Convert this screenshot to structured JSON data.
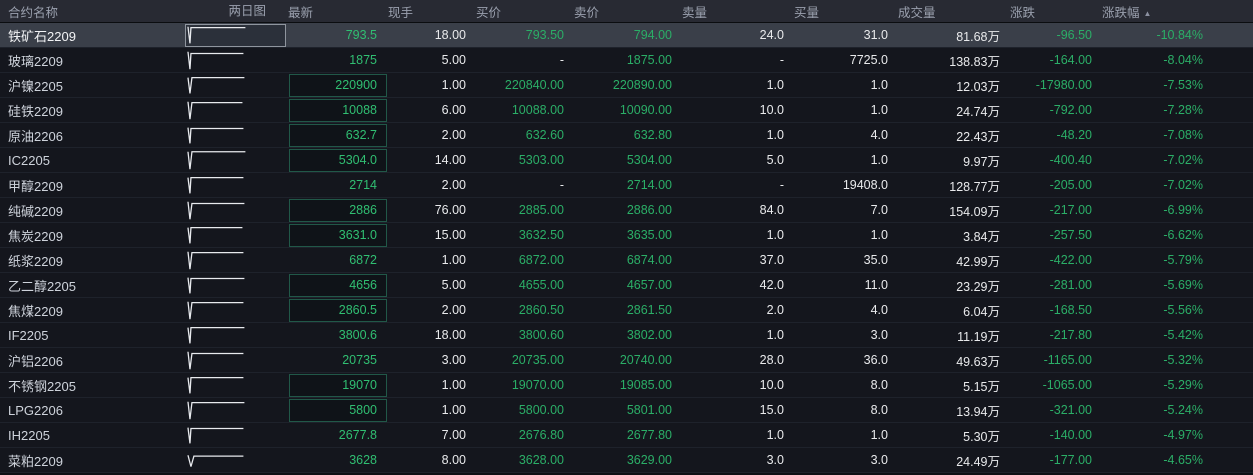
{
  "colors": {
    "green": "#2bae67",
    "latest-green": "#30bf72",
    "header-text": "#9aa0ae",
    "header-bg": "#282a33",
    "row-bg": "#14161d",
    "row-selected-bg": "#3a3f49",
    "box-border": "#215848",
    "focus-border": "#8f959e",
    "spark-stroke": "#e8eaee"
  },
  "sort_icon": "▲",
  "columns": [
    {
      "key": "name",
      "label": "合约名称",
      "align": "left"
    },
    {
      "key": "chart",
      "label": "两日图",
      "align": "chart"
    },
    {
      "key": "latest",
      "label": "最新",
      "align": "right"
    },
    {
      "key": "hand",
      "label": "现手",
      "align": "right"
    },
    {
      "key": "bid",
      "label": "买价",
      "align": "right"
    },
    {
      "key": "ask",
      "label": "卖价",
      "align": "right"
    },
    {
      "key": "askvol",
      "label": "卖量",
      "align": "right"
    },
    {
      "key": "bidvol",
      "label": "买量",
      "align": "right"
    },
    {
      "key": "vol",
      "label": "成交量",
      "align": "right"
    },
    {
      "key": "chg",
      "label": "涨跌",
      "align": "right"
    },
    {
      "key": "pct",
      "label": "涨跌幅",
      "align": "right",
      "sort": "asc"
    }
  ],
  "rows": [
    {
      "name": "铁矿石2209",
      "latest": "793.5",
      "hand": "18.00",
      "bid": "793.50",
      "ask": "794.00",
      "askvol": "24.0",
      "bidvol": "31.0",
      "vol": "81.68万",
      "chg": "-96.50",
      "pct": "-10.84%",
      "selected": true,
      "chart_focus": true,
      "latest_boxed": false,
      "spark": [
        [
          2,
          2
        ],
        [
          4,
          21
        ],
        [
          5,
          3
        ],
        [
          60,
          3
        ]
      ]
    },
    {
      "name": "玻璃2209",
      "latest": "1875",
      "hand": "5.00",
      "bid": "-",
      "ask": "1875.00",
      "askvol": "-",
      "bidvol": "7725.0",
      "vol": "138.83万",
      "chg": "-164.00",
      "pct": "-8.04%",
      "selected": false,
      "chart_focus": false,
      "latest_boxed": false,
      "spark": [
        [
          2,
          2
        ],
        [
          4,
          22
        ],
        [
          5,
          4
        ],
        [
          58,
          4
        ]
      ]
    },
    {
      "name": "沪镍2205",
      "latest": "220900",
      "hand": "1.00",
      "bid": "220840.00",
      "ask": "220890.00",
      "askvol": "1.0",
      "bidvol": "1.0",
      "vol": "12.03万",
      "chg": "-17980.00",
      "pct": "-7.53%",
      "selected": false,
      "chart_focus": false,
      "latest_boxed": true,
      "spark": [
        [
          2,
          3
        ],
        [
          4,
          21
        ],
        [
          6,
          3
        ],
        [
          59,
          3
        ]
      ]
    },
    {
      "name": "硅铁2209",
      "latest": "10088",
      "hand": "6.00",
      "bid": "10088.00",
      "ask": "10090.00",
      "askvol": "10.0",
      "bidvol": "1.0",
      "vol": "24.74万",
      "chg": "-792.00",
      "pct": "-7.28%",
      "selected": false,
      "chart_focus": false,
      "latest_boxed": true,
      "spark": [
        [
          2,
          2
        ],
        [
          4,
          22
        ],
        [
          6,
          3
        ],
        [
          57,
          3
        ]
      ]
    },
    {
      "name": "原油2206",
      "latest": "632.7",
      "hand": "2.00",
      "bid": "632.60",
      "ask": "632.80",
      "askvol": "1.0",
      "bidvol": "4.0",
      "vol": "22.43万",
      "chg": "-48.20",
      "pct": "-7.08%",
      "selected": false,
      "chart_focus": false,
      "latest_boxed": true,
      "spark": [
        [
          2,
          3
        ],
        [
          4,
          21
        ],
        [
          5,
          4
        ],
        [
          58,
          4
        ]
      ]
    },
    {
      "name": "IC2205",
      "latest": "5304.0",
      "hand": "14.00",
      "bid": "5303.00",
      "ask": "5304.00",
      "askvol": "5.0",
      "bidvol": "1.0",
      "vol": "9.97万",
      "chg": "-400.40",
      "pct": "-7.02%",
      "selected": false,
      "chart_focus": false,
      "latest_boxed": true,
      "spark": [
        [
          2,
          2
        ],
        [
          4,
          22
        ],
        [
          6,
          2
        ],
        [
          60,
          2
        ]
      ]
    },
    {
      "name": "甲醇2209",
      "latest": "2714",
      "hand": "2.00",
      "bid": "-",
      "ask": "2714.00",
      "askvol": "-",
      "bidvol": "19408.0",
      "vol": "128.77万",
      "chg": "-205.00",
      "pct": "-7.02%",
      "selected": false,
      "chart_focus": false,
      "latest_boxed": false,
      "spark": [
        [
          2,
          3
        ],
        [
          4,
          21
        ],
        [
          5,
          3
        ],
        [
          58,
          3
        ]
      ]
    },
    {
      "name": "纯碱2209",
      "latest": "2886",
      "hand": "76.00",
      "bid": "2885.00",
      "ask": "2886.00",
      "askvol": "84.0",
      "bidvol": "7.0",
      "vol": "154.09万",
      "chg": "-217.00",
      "pct": "-6.99%",
      "selected": false,
      "chart_focus": false,
      "latest_boxed": true,
      "spark": [
        [
          2,
          2
        ],
        [
          4,
          22
        ],
        [
          6,
          4
        ],
        [
          59,
          4
        ]
      ]
    },
    {
      "name": "焦炭2209",
      "latest": "3631.0",
      "hand": "15.00",
      "bid": "3632.50",
      "ask": "3635.00",
      "askvol": "1.0",
      "bidvol": "1.0",
      "vol": "3.84万",
      "chg": "-257.50",
      "pct": "-6.62%",
      "selected": false,
      "chart_focus": false,
      "latest_boxed": true,
      "spark": [
        [
          2,
          3
        ],
        [
          4,
          21
        ],
        [
          5,
          3
        ],
        [
          57,
          3
        ]
      ]
    },
    {
      "name": "纸浆2209",
      "latest": "6872",
      "hand": "1.00",
      "bid": "6872.00",
      "ask": "6874.00",
      "askvol": "37.0",
      "bidvol": "35.0",
      "vol": "42.99万",
      "chg": "-422.00",
      "pct": "-5.79%",
      "selected": false,
      "chart_focus": false,
      "latest_boxed": false,
      "spark": [
        [
          2,
          2
        ],
        [
          4,
          22
        ],
        [
          6,
          3
        ],
        [
          58,
          3
        ]
      ]
    },
    {
      "name": "乙二醇2205",
      "latest": "4656",
      "hand": "5.00",
      "bid": "4655.00",
      "ask": "4657.00",
      "askvol": "42.0",
      "bidvol": "11.0",
      "vol": "23.29万",
      "chg": "-281.00",
      "pct": "-5.69%",
      "selected": false,
      "chart_focus": false,
      "latest_boxed": true,
      "spark": [
        [
          2,
          3
        ],
        [
          4,
          21
        ],
        [
          5,
          4
        ],
        [
          59,
          4
        ]
      ]
    },
    {
      "name": "焦煤2209",
      "latest": "2860.5",
      "hand": "2.00",
      "bid": "2860.50",
      "ask": "2861.50",
      "askvol": "2.0",
      "bidvol": "4.0",
      "vol": "6.04万",
      "chg": "-168.50",
      "pct": "-5.56%",
      "selected": false,
      "chart_focus": false,
      "latest_boxed": true,
      "spark": [
        [
          2,
          2
        ],
        [
          4,
          22
        ],
        [
          6,
          3
        ],
        [
          58,
          3
        ]
      ]
    },
    {
      "name": "IF2205",
      "latest": "3800.6",
      "hand": "18.00",
      "bid": "3800.60",
      "ask": "3802.00",
      "askvol": "1.0",
      "bidvol": "3.0",
      "vol": "11.19万",
      "chg": "-217.80",
      "pct": "-5.42%",
      "selected": false,
      "chart_focus": false,
      "latest_boxed": false,
      "spark": [
        [
          2,
          3
        ],
        [
          4,
          21
        ],
        [
          5,
          3
        ],
        [
          59,
          3
        ]
      ]
    },
    {
      "name": "沪铝2206",
      "latest": "20735",
      "hand": "3.00",
      "bid": "20735.00",
      "ask": "20740.00",
      "askvol": "28.0",
      "bidvol": "36.0",
      "vol": "49.63万",
      "chg": "-1165.00",
      "pct": "-5.32%",
      "selected": false,
      "chart_focus": false,
      "latest_boxed": false,
      "spark": [
        [
          2,
          2
        ],
        [
          4,
          22
        ],
        [
          6,
          4
        ],
        [
          58,
          4
        ]
      ]
    },
    {
      "name": "不锈钢2205",
      "latest": "19070",
      "hand": "1.00",
      "bid": "19070.00",
      "ask": "19085.00",
      "askvol": "10.0",
      "bidvol": "8.0",
      "vol": "5.15万",
      "chg": "-1065.00",
      "pct": "-5.29%",
      "selected": false,
      "chart_focus": false,
      "latest_boxed": true,
      "spark": [
        [
          2,
          3
        ],
        [
          4,
          21
        ],
        [
          5,
          3
        ],
        [
          58,
          3
        ]
      ]
    },
    {
      "name": "LPG2206",
      "latest": "5800",
      "hand": "1.00",
      "bid": "5800.00",
      "ask": "5801.00",
      "askvol": "15.0",
      "bidvol": "8.0",
      "vol": "13.94万",
      "chg": "-321.00",
      "pct": "-5.24%",
      "selected": false,
      "chart_focus": false,
      "latest_boxed": true,
      "spark": [
        [
          2,
          2
        ],
        [
          4,
          22
        ],
        [
          6,
          3
        ],
        [
          59,
          3
        ]
      ]
    },
    {
      "name": "IH2205",
      "latest": "2677.8",
      "hand": "7.00",
      "bid": "2676.80",
      "ask": "2677.80",
      "askvol": "1.0",
      "bidvol": "1.0",
      "vol": "5.30万",
      "chg": "-140.00",
      "pct": "-4.97%",
      "selected": false,
      "chart_focus": false,
      "latest_boxed": false,
      "spark": [
        [
          2,
          3
        ],
        [
          4,
          21
        ],
        [
          5,
          4
        ],
        [
          58,
          4
        ]
      ]
    },
    {
      "name": "菜粕2209",
      "latest": "3628",
      "hand": "8.00",
      "bid": "3628.00",
      "ask": "3629.00",
      "askvol": "3.0",
      "bidvol": "3.0",
      "vol": "24.49万",
      "chg": "-177.00",
      "pct": "-4.65%",
      "selected": false,
      "chart_focus": false,
      "latest_boxed": false,
      "spark": [
        [
          2,
          6
        ],
        [
          5,
          19
        ],
        [
          8,
          7
        ],
        [
          58,
          7
        ]
      ]
    }
  ]
}
